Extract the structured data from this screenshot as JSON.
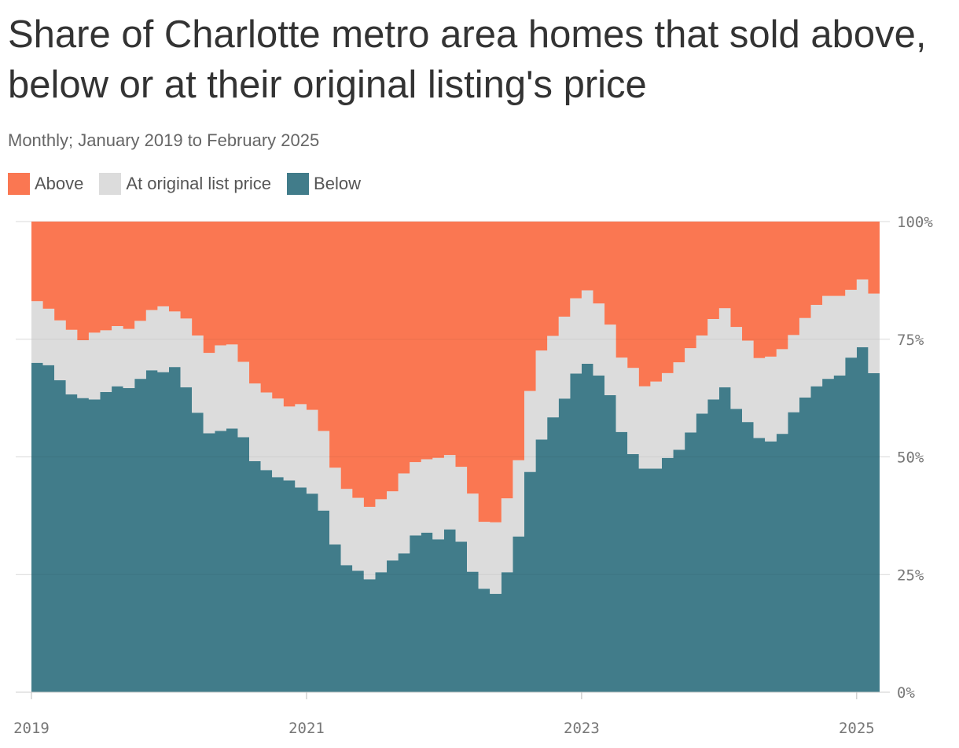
{
  "title": "Share of Charlotte metro area homes that sold above, below or at their original listing's price",
  "subtitle": "Monthly; January 2019 to February 2025",
  "legend": [
    {
      "label": "Above",
      "color": "#fa7752"
    },
    {
      "label": "At original list price",
      "color": "#dcdcdc"
    },
    {
      "label": "Below",
      "color": "#417c8a"
    }
  ],
  "chart_data": {
    "type": "area",
    "stacked": true,
    "step": true,
    "x_start": "2019-01",
    "x_end": "2025-02",
    "x_ticks": [
      "2019",
      "2021",
      "2023",
      "2025"
    ],
    "y_ticks": [
      "0%",
      "25%",
      "50%",
      "75%",
      "100%"
    ],
    "ylim": [
      0,
      100
    ],
    "series": [
      {
        "name": "Below",
        "color": "#417c8a",
        "values": [
          70,
          69.5,
          66.3,
          63.3,
          62.5,
          62.2,
          63.8,
          65,
          64.6,
          66.6,
          68.4,
          68,
          69.1,
          64.8,
          59.4,
          55,
          55.5,
          56,
          54.2,
          49.1,
          47.2,
          45.7,
          45,
          43.5,
          42.2,
          38.6,
          31.4,
          27,
          25.8,
          24,
          25.5,
          28,
          29.5,
          33.3,
          33.9,
          32.5,
          34.6,
          32,
          25.6,
          22,
          20.9,
          25.5,
          33.1,
          46.8,
          53.7,
          58.4,
          62.4,
          67.7,
          69.8,
          67.3,
          63.1,
          55.3,
          50.6,
          47.5,
          47.5,
          49.8,
          51.5,
          55.2,
          59.2,
          62.2,
          64.8,
          60.2,
          57.4,
          54,
          53.3,
          54.9,
          59.5,
          62.6,
          65,
          66.6,
          67.3,
          71.1,
          73.3,
          67.8
        ]
      },
      {
        "name": "At original list price",
        "color": "#dcdcdc",
        "values": [
          13.1,
          12,
          12.7,
          13.7,
          12.3,
          14.2,
          13.1,
          12.8,
          12.6,
          12.3,
          12.8,
          14,
          11.8,
          14.6,
          16.4,
          17.1,
          18.2,
          17.9,
          16,
          16.5,
          16.5,
          16.7,
          15.7,
          17.7,
          17.8,
          16.9,
          16.3,
          16.2,
          15.5,
          15.4,
          15.5,
          14.7,
          17,
          15.6,
          15.6,
          17.3,
          15.8,
          15.9,
          16.6,
          14.2,
          15.2,
          15.7,
          16.2,
          17.2,
          18.9,
          17.3,
          17.4,
          16,
          15.6,
          15.3,
          15,
          15.8,
          18.3,
          17.5,
          18.5,
          18,
          18.6,
          17.9,
          16.6,
          17.1,
          16.8,
          17.4,
          17.3,
          17,
          18,
          18,
          16.4,
          16.9,
          17.3,
          17.6,
          16.9,
          14.4,
          14.4,
          16.9
        ]
      },
      {
        "name": "Above",
        "color": "#fa7752",
        "values": [
          16.9,
          18.5,
          21,
          23,
          25.2,
          23.6,
          23.1,
          22.2,
          22.8,
          21.1,
          18.8,
          18,
          19.1,
          20.6,
          24.2,
          27.9,
          26.3,
          26.1,
          29.8,
          34.4,
          36.3,
          37.6,
          39.3,
          38.8,
          40,
          44.5,
          52.3,
          56.8,
          58.7,
          60.6,
          59,
          57.3,
          53.5,
          51.1,
          50.5,
          50.2,
          49.6,
          52.1,
          57.8,
          63.8,
          63.9,
          58.8,
          50.7,
          36,
          27.4,
          24.3,
          20.2,
          16.3,
          14.6,
          17.4,
          21.9,
          28.9,
          31.1,
          35,
          34,
          32.2,
          29.9,
          26.9,
          24.2,
          20.7,
          18.4,
          22.4,
          25.3,
          29,
          28.7,
          27.1,
          24.1,
          20.5,
          17.7,
          15.8,
          15.8,
          14.5,
          12.3,
          15.3
        ]
      }
    ]
  }
}
